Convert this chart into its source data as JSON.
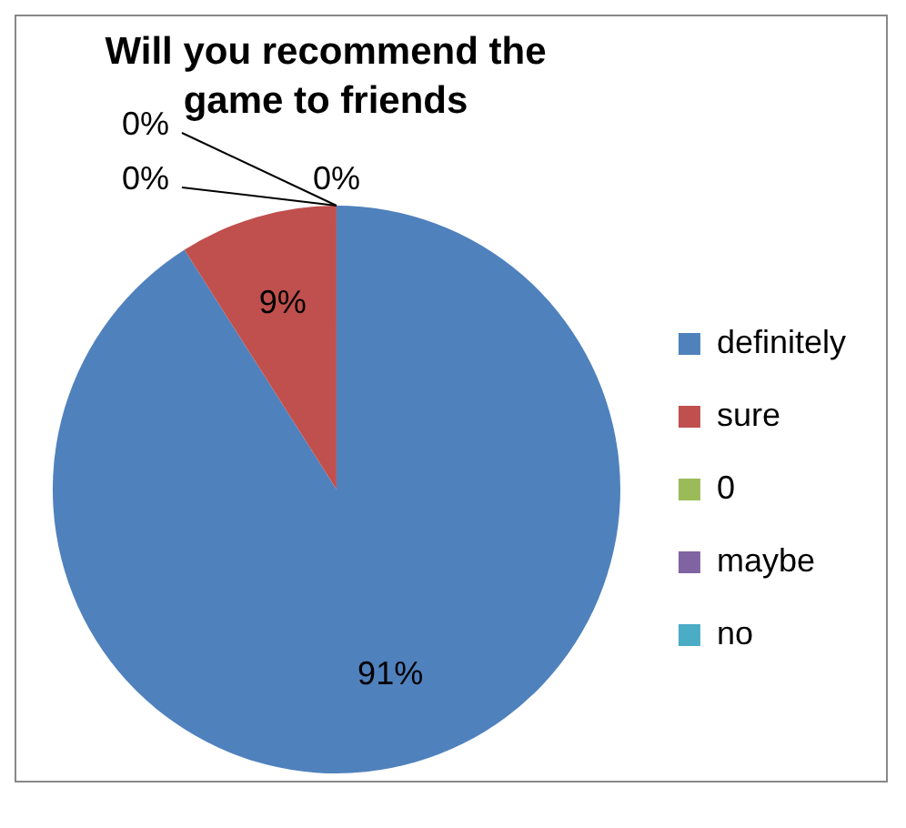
{
  "chart_data": {
    "type": "pie",
    "title": "Will you recommend the game to friends",
    "categories": [
      "definitely",
      "sure",
      "0",
      "maybe",
      "no"
    ],
    "values": [
      91,
      9,
      0,
      0,
      0
    ],
    "colors": [
      "#4f81bd",
      "#c0504d",
      "#9bbb59",
      "#8064a2",
      "#4bacc6"
    ],
    "value_labels": [
      "91%",
      "9%",
      "0%",
      "0%",
      "0%"
    ],
    "legend": "right"
  }
}
